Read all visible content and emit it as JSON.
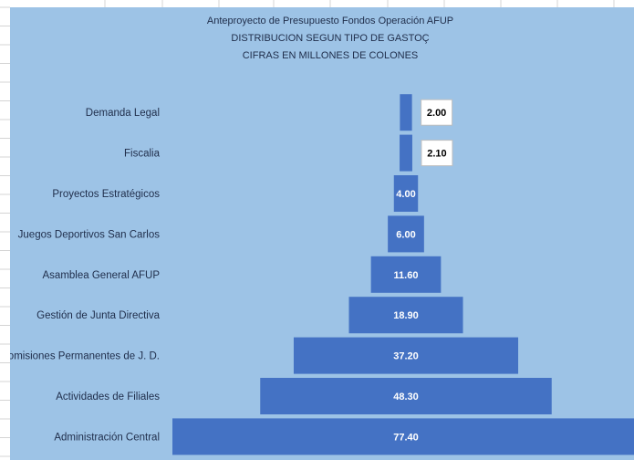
{
  "chart_data": {
    "type": "bar",
    "orientation": "horizontal-centered",
    "title": [
      "Anteproyecto de Presupuesto Fondos Operación AFUP",
      "DISTRIBUCION SEGUN TIPO DE GASTOÇ",
      "CIFRAS EN MILLONES DE COLONES"
    ],
    "categories": [
      "Demanda Legal",
      "Fiscalia",
      "Proyectos Estratégicos",
      "Juegos Deportivos San Carlos",
      "Asamblea General AFUP",
      "Gestión de Junta Directiva",
      "Comisiones Permanentes de J. D.",
      "Actividades de Filiales",
      "Administración Central"
    ],
    "values": [
      2.0,
      2.1,
      4.0,
      6.0,
      11.6,
      18.9,
      37.2,
      48.3,
      77.4
    ],
    "value_labels": [
      "2.00",
      "2.10",
      "4.00",
      "6.00",
      "11.60",
      "18.90",
      "37.20",
      "48.30",
      "77.40"
    ],
    "xlim": [
      0,
      77.4
    ],
    "grid": false,
    "legend": "none",
    "colors": {
      "bar": "#4472c4",
      "background": "#9dc3e6",
      "label_box": "#ffffff",
      "text": "#1f2d4a"
    }
  }
}
